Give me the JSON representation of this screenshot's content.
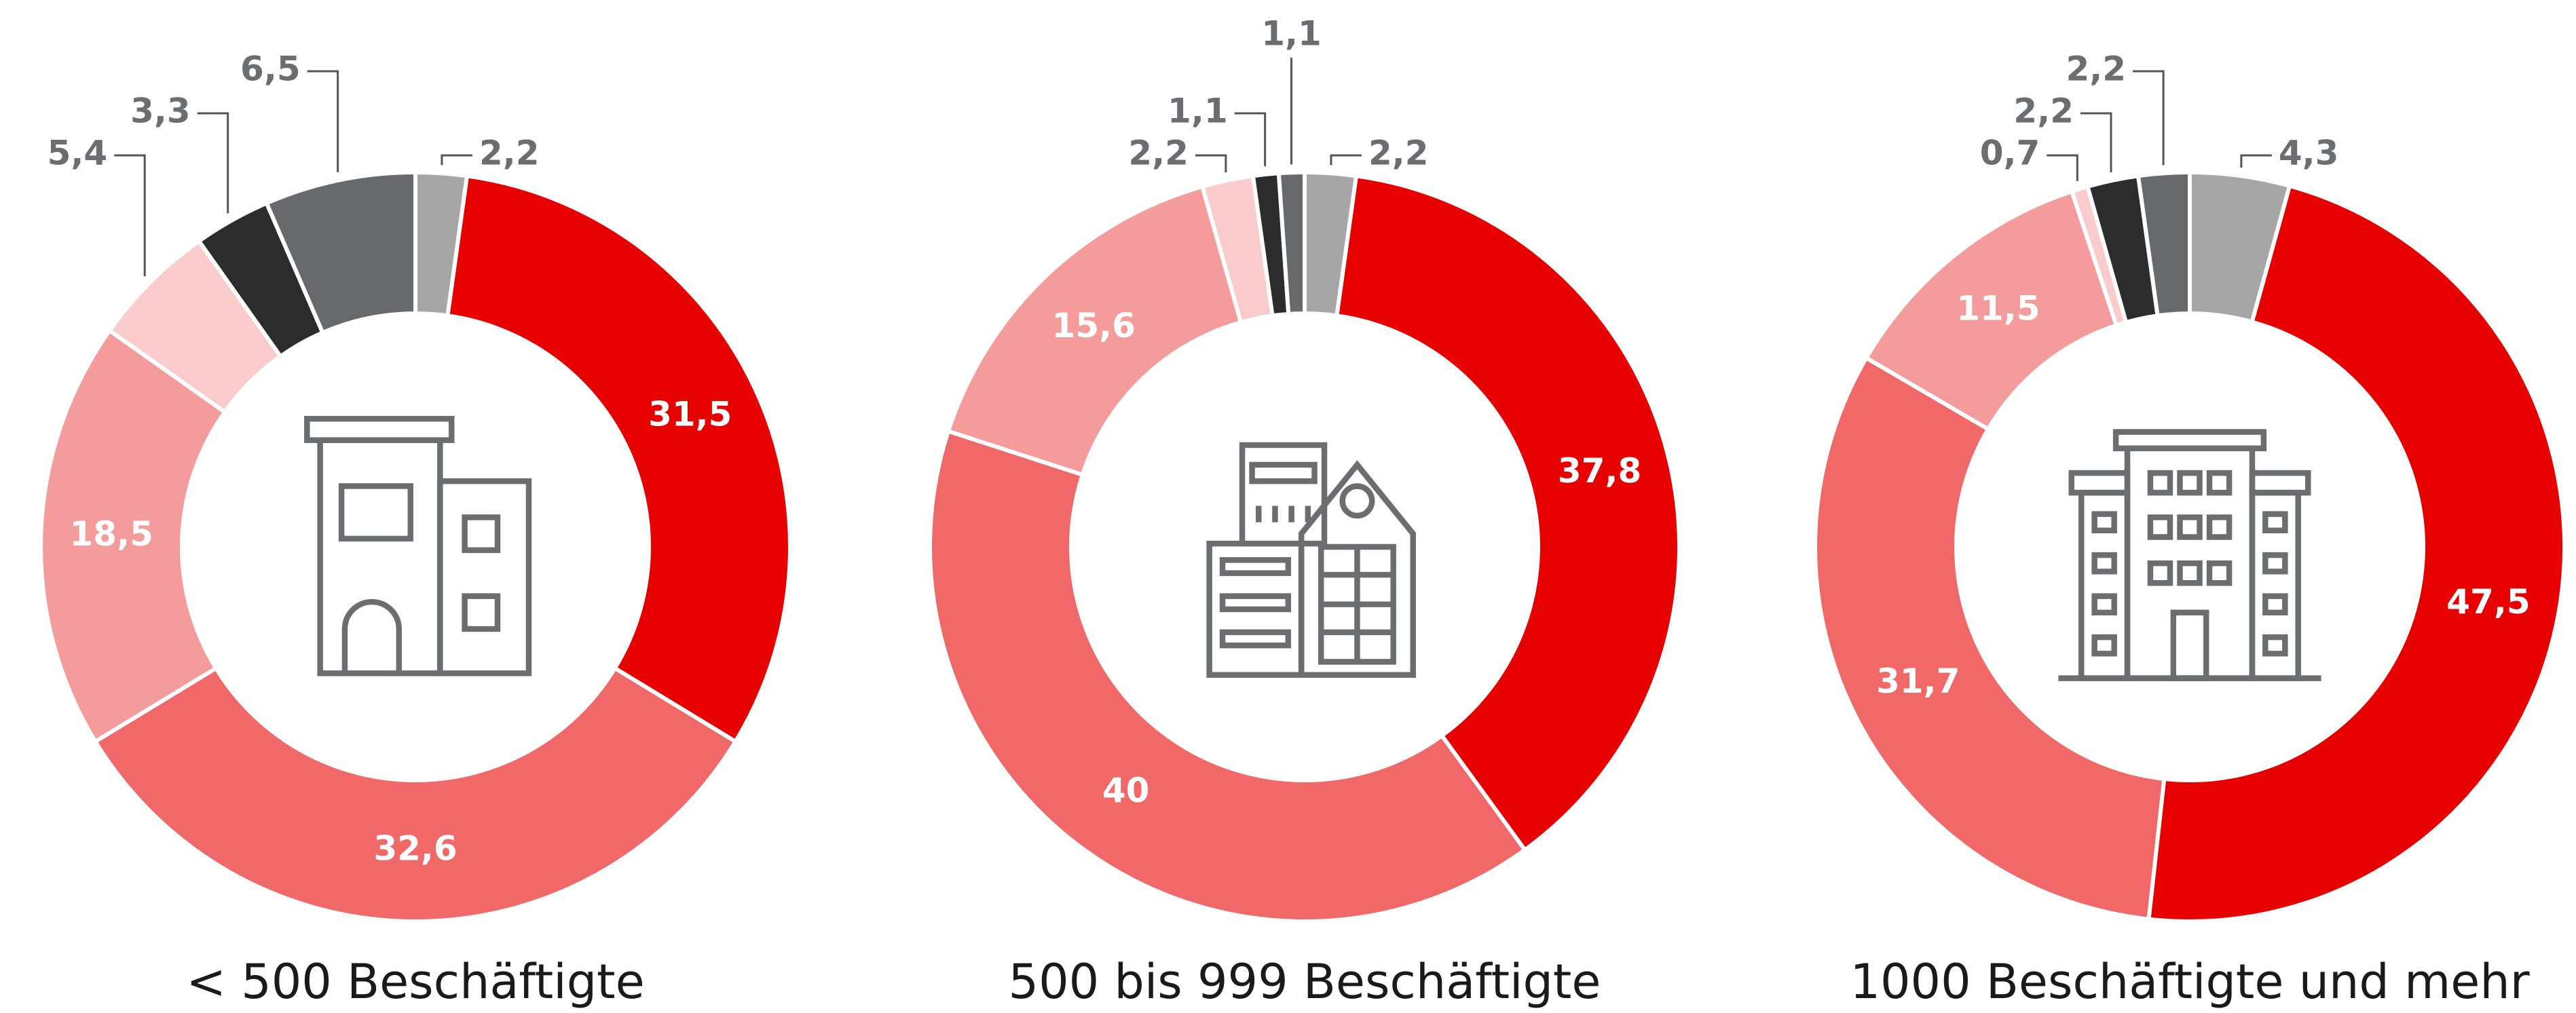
{
  "chart_data": [
    {
      "type": "donut",
      "title": "< 500 Beschäftigte",
      "values": [
        2.2,
        31.5,
        32.6,
        18.5,
        5.4,
        3.3,
        6.5
      ],
      "value_labels": [
        "2,2",
        "31,5",
        "32,6",
        "18,5",
        "5,4",
        "3,3",
        "6,5"
      ],
      "colors": [
        "#a6a6a6",
        "#e60000",
        "#f06868",
        "#f49b9b",
        "#facbcb",
        "#2a2c2e",
        "#676a6d"
      ]
    },
    {
      "type": "donut",
      "title": "500 bis 999 Beschäftigte",
      "values": [
        2.2,
        37.8,
        40,
        15.6,
        2.2,
        1.1,
        1.1
      ],
      "value_labels": [
        "2,2",
        "37,8",
        "40",
        "15,6",
        "2,2",
        "1,1",
        "1,1"
      ],
      "colors": [
        "#a6a6a6",
        "#e60000",
        "#f06868",
        "#f49b9b",
        "#facbcb",
        "#2a2c2e",
        "#676a6d"
      ]
    },
    {
      "type": "donut",
      "title": "1000 Beschäftigte und mehr",
      "values": [
        4.3,
        47.5,
        31.7,
        11.5,
        0.7,
        2.2,
        2.2
      ],
      "value_labels": [
        "4,3",
        "47,5",
        "31,7",
        "11,5",
        "0,7",
        "2,2",
        "2,2"
      ],
      "colors": [
        "#a6a6a6",
        "#e60000",
        "#f06868",
        "#f49b9b",
        "#facbcb",
        "#2a2c2e",
        "#676a6d"
      ]
    }
  ]
}
